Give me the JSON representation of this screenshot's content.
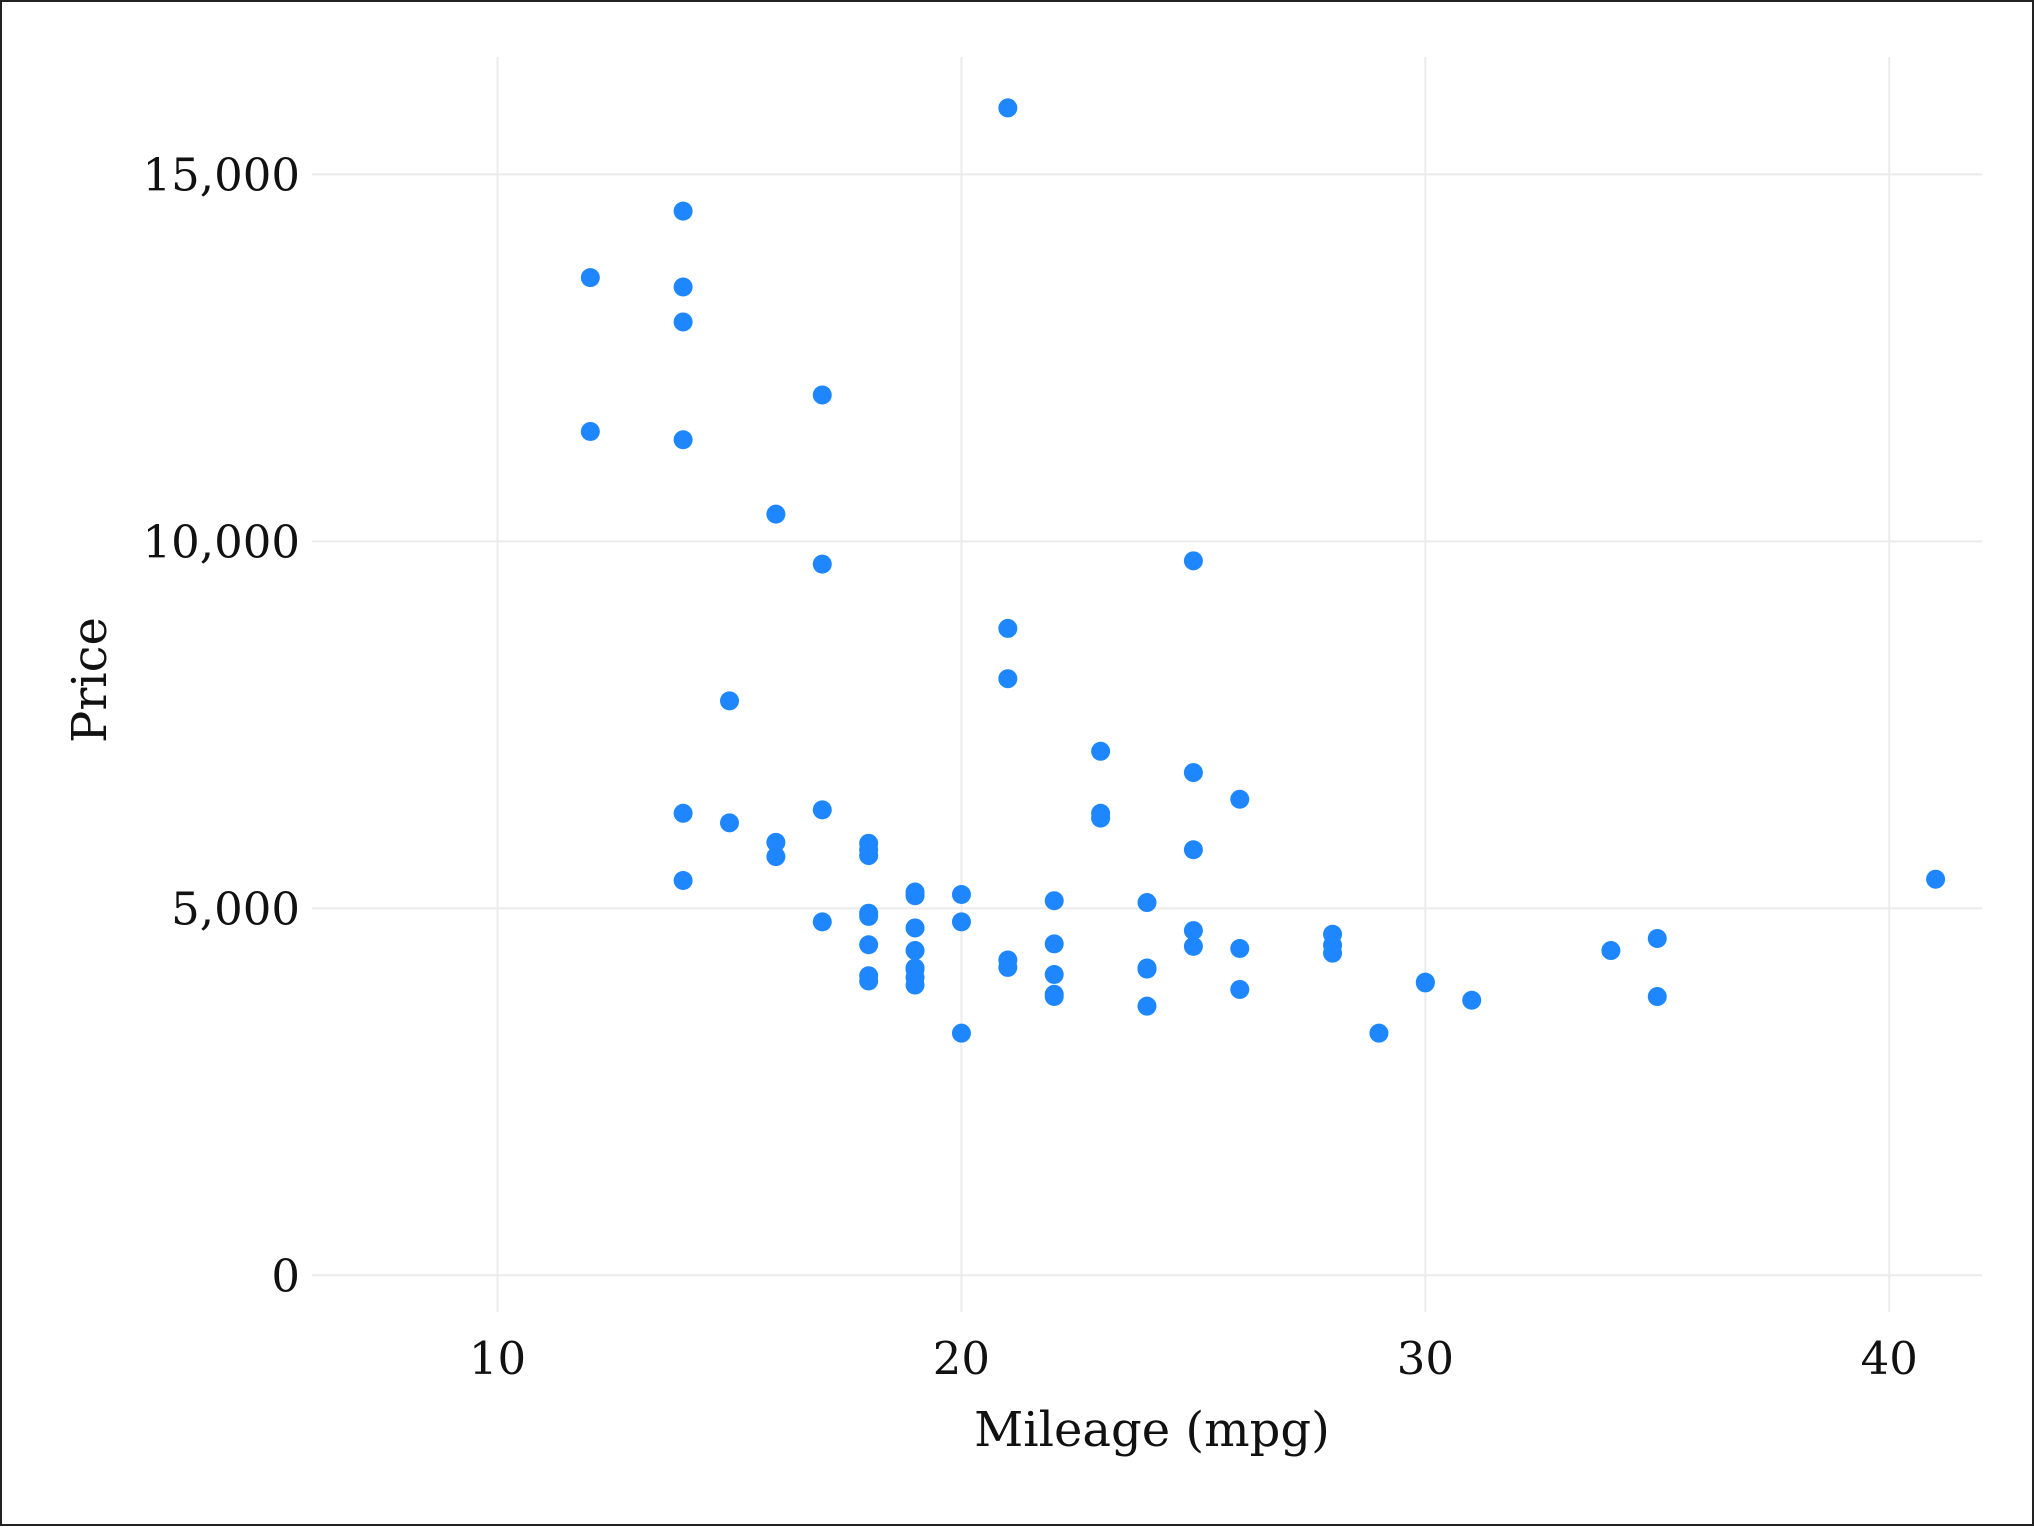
{
  "chart_data": {
    "type": "scatter",
    "xlabel": "Mileage (mpg)",
    "ylabel": "Price",
    "xlim": [
      6,
      42
    ],
    "ylim": [
      -500,
      16600
    ],
    "x_ticks": [
      10,
      20,
      30,
      40
    ],
    "x_tick_labels": [
      "10",
      "20",
      "30",
      "40"
    ],
    "y_ticks": [
      0,
      5000,
      10000,
      15000
    ],
    "y_tick_labels": [
      "0",
      "5,000",
      "10,000",
      "15,000"
    ],
    "grid": true,
    "legend": "none",
    "marker_color": "#1e87ff",
    "points": [
      {
        "x": 12,
        "y": 13594
      },
      {
        "x": 12,
        "y": 11497
      },
      {
        "x": 14,
        "y": 14500
      },
      {
        "x": 14,
        "y": 13466
      },
      {
        "x": 14,
        "y": 12990
      },
      {
        "x": 14,
        "y": 11385
      },
      {
        "x": 14,
        "y": 6295
      },
      {
        "x": 14,
        "y": 5379
      },
      {
        "x": 15,
        "y": 7827
      },
      {
        "x": 15,
        "y": 6165
      },
      {
        "x": 16,
        "y": 10371
      },
      {
        "x": 16,
        "y": 5899
      },
      {
        "x": 16,
        "y": 5705
      },
      {
        "x": 17,
        "y": 11995
      },
      {
        "x": 17,
        "y": 9690
      },
      {
        "x": 17,
        "y": 6342
      },
      {
        "x": 17,
        "y": 4816
      },
      {
        "x": 18,
        "y": 5886
      },
      {
        "x": 18,
        "y": 5799
      },
      {
        "x": 18,
        "y": 5719
      },
      {
        "x": 18,
        "y": 4934
      },
      {
        "x": 18,
        "y": 4890
      },
      {
        "x": 18,
        "y": 4504
      },
      {
        "x": 18,
        "y": 4082
      },
      {
        "x": 18,
        "y": 4010
      },
      {
        "x": 19,
        "y": 5222
      },
      {
        "x": 19,
        "y": 5172
      },
      {
        "x": 19,
        "y": 4733
      },
      {
        "x": 19,
        "y": 4425
      },
      {
        "x": 19,
        "y": 4187
      },
      {
        "x": 19,
        "y": 4172
      },
      {
        "x": 19,
        "y": 4060
      },
      {
        "x": 19,
        "y": 3955
      },
      {
        "x": 20,
        "y": 5189
      },
      {
        "x": 20,
        "y": 4816
      },
      {
        "x": 20,
        "y": 3299
      },
      {
        "x": 21,
        "y": 15906
      },
      {
        "x": 21,
        "y": 8814
      },
      {
        "x": 21,
        "y": 8129
      },
      {
        "x": 21,
        "y": 4296
      },
      {
        "x": 21,
        "y": 4195
      },
      {
        "x": 22,
        "y": 5104
      },
      {
        "x": 22,
        "y": 4516
      },
      {
        "x": 22,
        "y": 4099
      },
      {
        "x": 22,
        "y": 3829
      },
      {
        "x": 22,
        "y": 3799
      },
      {
        "x": 23,
        "y": 7140
      },
      {
        "x": 23,
        "y": 6295
      },
      {
        "x": 23,
        "y": 6229
      },
      {
        "x": 24,
        "y": 5079
      },
      {
        "x": 24,
        "y": 4187
      },
      {
        "x": 24,
        "y": 4172
      },
      {
        "x": 24,
        "y": 3667
      },
      {
        "x": 25,
        "y": 9735
      },
      {
        "x": 25,
        "y": 6850
      },
      {
        "x": 25,
        "y": 5798
      },
      {
        "x": 25,
        "y": 4697
      },
      {
        "x": 25,
        "y": 4482
      },
      {
        "x": 26,
        "y": 6486
      },
      {
        "x": 26,
        "y": 4453
      },
      {
        "x": 26,
        "y": 3895
      },
      {
        "x": 28,
        "y": 4647
      },
      {
        "x": 28,
        "y": 4499
      },
      {
        "x": 28,
        "y": 4389
      },
      {
        "x": 29,
        "y": 3299
      },
      {
        "x": 30,
        "y": 3995
      },
      {
        "x": 30,
        "y": 3984
      },
      {
        "x": 31,
        "y": 3748
      },
      {
        "x": 34,
        "y": 4425
      },
      {
        "x": 35,
        "y": 4589
      },
      {
        "x": 35,
        "y": 3798
      },
      {
        "x": 41,
        "y": 5397
      }
    ]
  }
}
